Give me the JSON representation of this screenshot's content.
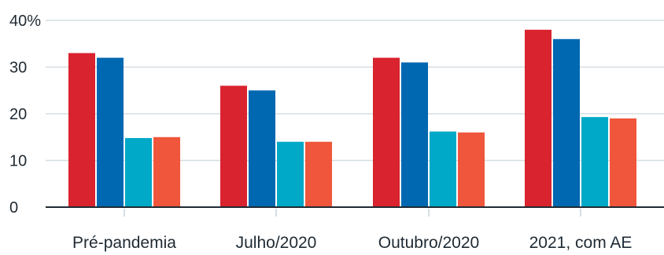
{
  "chart_data": {
    "type": "bar",
    "title": "",
    "xlabel": "",
    "ylabel": "",
    "ylim": [
      0,
      40
    ],
    "yticks": [
      0,
      10,
      20,
      30,
      40
    ],
    "ytick_labels": [
      "0",
      "10",
      "20",
      "30",
      "40%"
    ],
    "grid": true,
    "legend": "none",
    "categories": [
      "Pré-pandemia",
      "Julho/2020",
      "Outubro/2020",
      "2021, com AE"
    ],
    "series": [
      {
        "color": "#d9232e",
        "values": [
          33,
          26,
          32,
          38
        ]
      },
      {
        "color": "#0068b1",
        "values": [
          32,
          25,
          31,
          36
        ]
      },
      {
        "color": "#00a9c7",
        "values": [
          14.8,
          14,
          16.2,
          19.3
        ]
      },
      {
        "color": "#f0563b",
        "values": [
          15,
          14,
          16,
          19
        ]
      }
    ]
  }
}
